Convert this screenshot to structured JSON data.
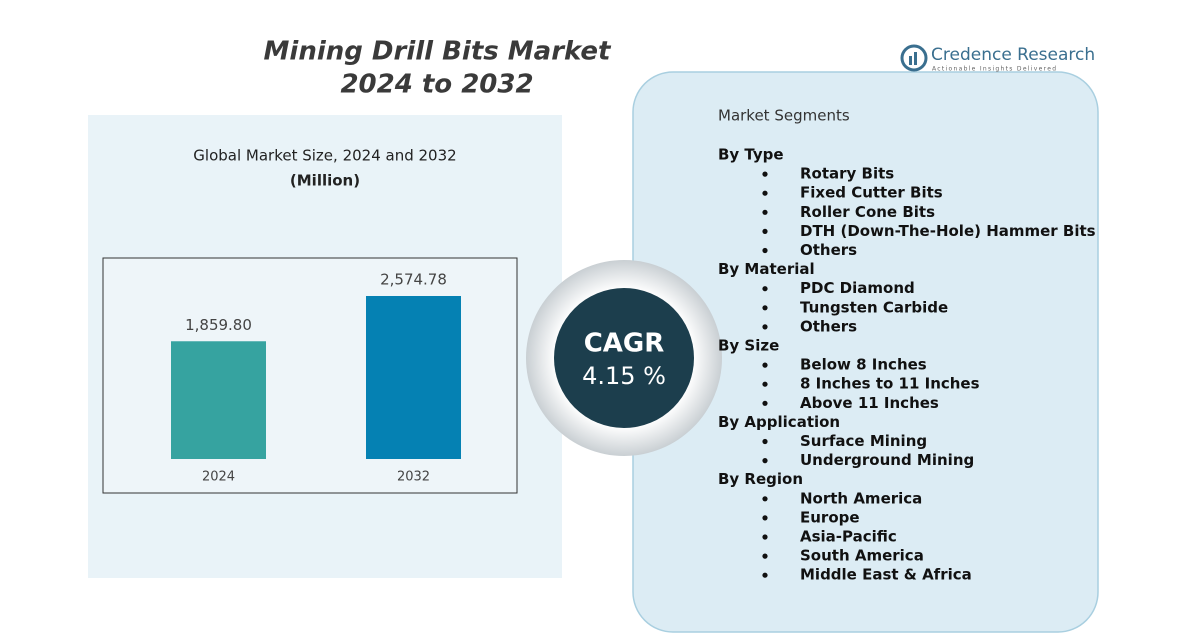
{
  "title": {
    "line1": "Mining Drill Bits Market",
    "line2": "2024 to 2032"
  },
  "logo": {
    "name": "Credence Research",
    "tagline": "Actionable Insights Delivered"
  },
  "chart_data": {
    "type": "bar",
    "title": "Global Market Size,  2024 and 2032",
    "subtitle": "(Million)",
    "categories": [
      "2024",
      "2032"
    ],
    "values": [
      1859.8,
      2574.78
    ],
    "value_labels": [
      "1,859.80",
      "2,574.78"
    ],
    "colors": [
      "#36a3a0",
      "#0581b3"
    ]
  },
  "cagr": {
    "label": "CAGR",
    "value": "4.15 %"
  },
  "segments": {
    "title": "Market Segments",
    "groups": [
      {
        "name": "By Type",
        "items": [
          "Rotary Bits",
          "Fixed Cutter Bits",
          "Roller Cone Bits",
          "DTH (Down-The-Hole) Hammer Bits",
          "Others"
        ]
      },
      {
        "name": "By Material",
        "items": [
          "PDC Diamond",
          "Tungsten Carbide",
          "Others"
        ]
      },
      {
        "name": "By Size",
        "items": [
          "Below 8 Inches",
          "8 Inches to 11 Inches",
          "Above 11 Inches"
        ]
      },
      {
        "name": "By Application",
        "items": [
          "Surface Mining",
          "Underground Mining"
        ]
      },
      {
        "name": "By Region",
        "items": [
          "North America",
          "Europe",
          "Asia-Pacific",
          "South America",
          "Middle East & Africa"
        ]
      }
    ]
  }
}
